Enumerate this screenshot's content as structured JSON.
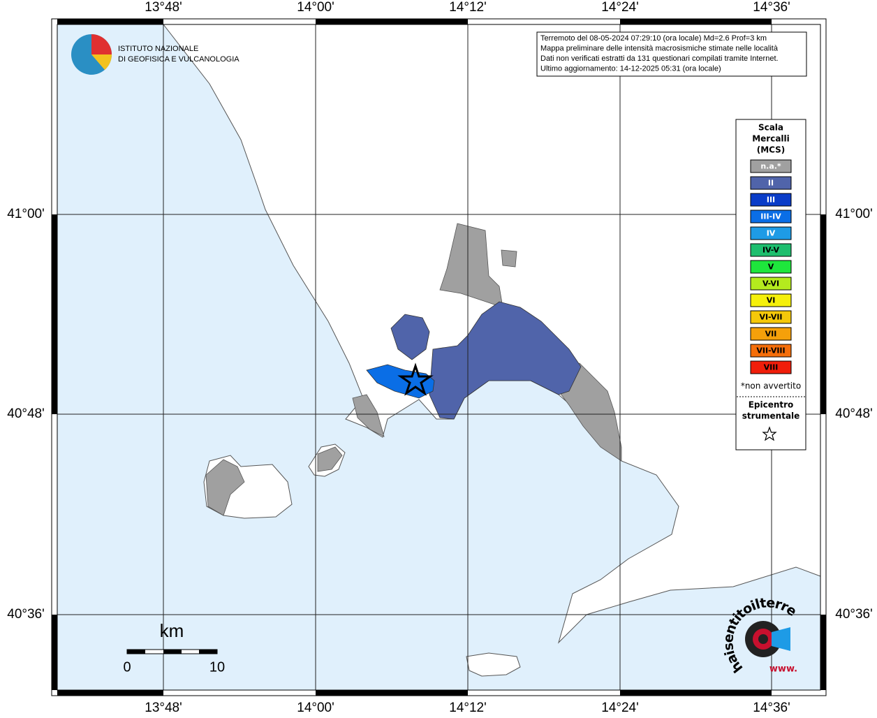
{
  "map": {
    "longitude_labels": [
      "13°48'",
      "14°00'",
      "14°12'",
      "14°24'",
      "14°36'"
    ],
    "latitude_labels": [
      "41°00'",
      "40°48'",
      "40°36'"
    ],
    "info": [
      "Terremoto del 08-05-2024 07:29:10 (ora locale) Md=2.6 Prof=3 km",
      "Mappa preliminare delle intensità macrosismiche stimate nelle località",
      "Dati non verificati estratti da 131 questionari compilati tramite Internet.",
      "Ultimo aggiornamento: 14-12-2025 05:31 (ora locale)"
    ],
    "logo": [
      "ISTITUTO NAZIONALE",
      "DI GEOFISICA E VULCANOLOGIA"
    ],
    "legend": {
      "title": [
        "Scala",
        "Mercalli",
        "(MCS)"
      ],
      "classes": [
        {
          "label": "n.a.*",
          "color": "#a0a0a0",
          "text_color": "#ffffff"
        },
        {
          "label": "II",
          "color": "#5064aa",
          "text_color": "#ffffff"
        },
        {
          "label": "III",
          "color": "#0a3cc8",
          "text_color": "#ffffff"
        },
        {
          "label": "III-IV",
          "color": "#0a6ee6",
          "text_color": "#ffffff"
        },
        {
          "label": "IV",
          "color": "#1e9be6",
          "text_color": "#ffffff"
        },
        {
          "label": "IV-V",
          "color": "#1ebe6e",
          "text_color": "#000000"
        },
        {
          "label": "V",
          "color": "#1ee63c",
          "text_color": "#000000"
        },
        {
          "label": "V-VI",
          "color": "#b4eb1e",
          "text_color": "#000000"
        },
        {
          "label": "VI",
          "color": "#f5f00a",
          "text_color": "#000000"
        },
        {
          "label": "VI-VII",
          "color": "#f5c80a",
          "text_color": "#000000"
        },
        {
          "label": "VII",
          "color": "#f5a00a",
          "text_color": "#000000"
        },
        {
          "label": "VII-VIII",
          "color": "#f56e0a",
          "text_color": "#000000"
        },
        {
          "label": "VIII",
          "color": "#f01e0a",
          "text_color": "#000000"
        }
      ],
      "footnote": "*non avvertito",
      "epicenter": [
        "Epicentro",
        "strumentale"
      ]
    },
    "scale_bar": {
      "unit": "km",
      "labels": [
        "0",
        "10"
      ]
    },
    "site_logo": {
      "name": "haisentitoilterremoto.it",
      "www": "www."
    }
  }
}
